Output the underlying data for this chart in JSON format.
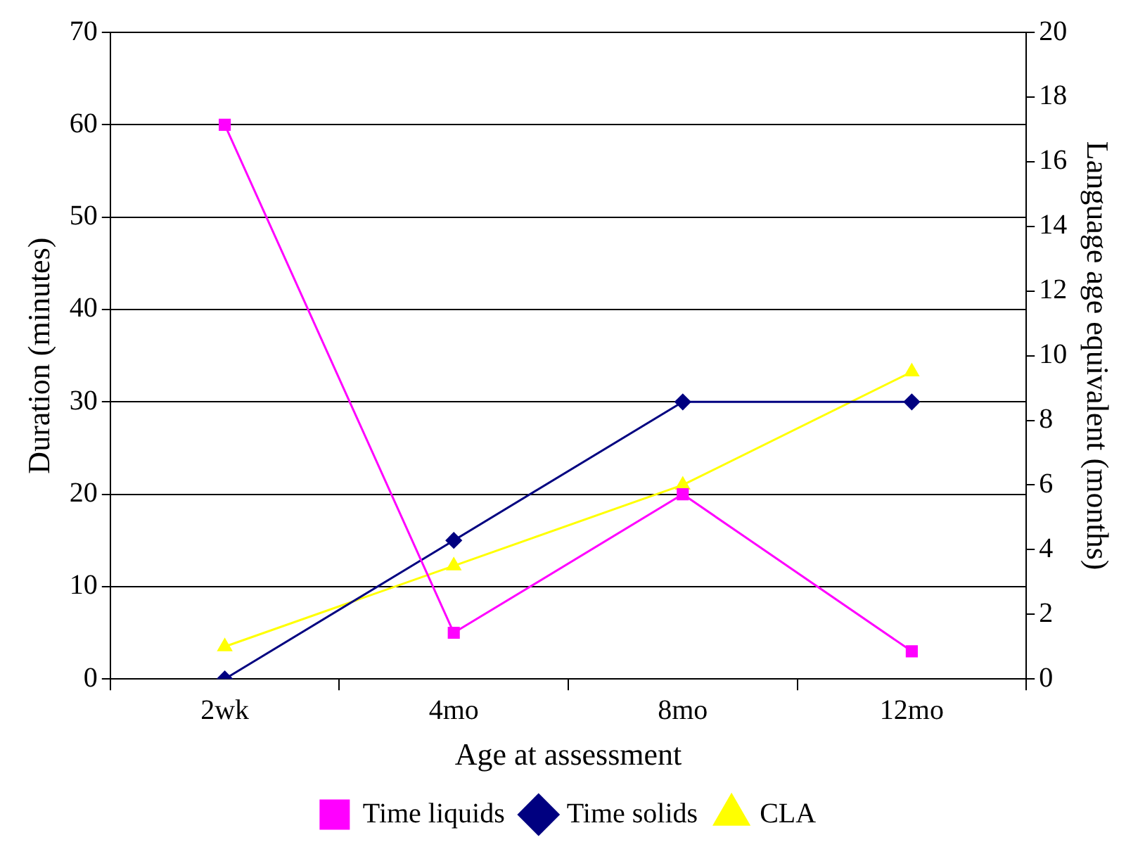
{
  "chart_data": {
    "type": "line",
    "xlabel": "Age at assessment",
    "ylabel": "Duration (minutes)",
    "y2label": "Language age equivalent (months)",
    "categories": [
      "2wk",
      "4mo",
      "8mo",
      "12mo"
    ],
    "series": [
      {
        "name": "Time liquids",
        "color": "#ff00ff",
        "marker": "square",
        "values": [
          60,
          5,
          20,
          3
        ]
      },
      {
        "name": "Time solids",
        "color": "#000080",
        "marker": "diamond",
        "values": [
          0,
          15,
          30,
          30
        ]
      },
      {
        "name": "CLA",
        "color": "#ffff00",
        "marker": "triangle",
        "axis": "y2",
        "values": [
          1,
          3.5,
          6,
          9.5
        ]
      }
    ],
    "ylim": [
      0,
      70
    ],
    "yticks": [
      0,
      10,
      20,
      30,
      40,
      50,
      60,
      70
    ],
    "y2lim": [
      0,
      20
    ],
    "y2ticks": [
      0,
      2,
      4,
      6,
      8,
      10,
      12,
      14,
      16,
      18,
      20
    ],
    "grid": "y",
    "legend": "bottom",
    "line_style": "solid"
  }
}
